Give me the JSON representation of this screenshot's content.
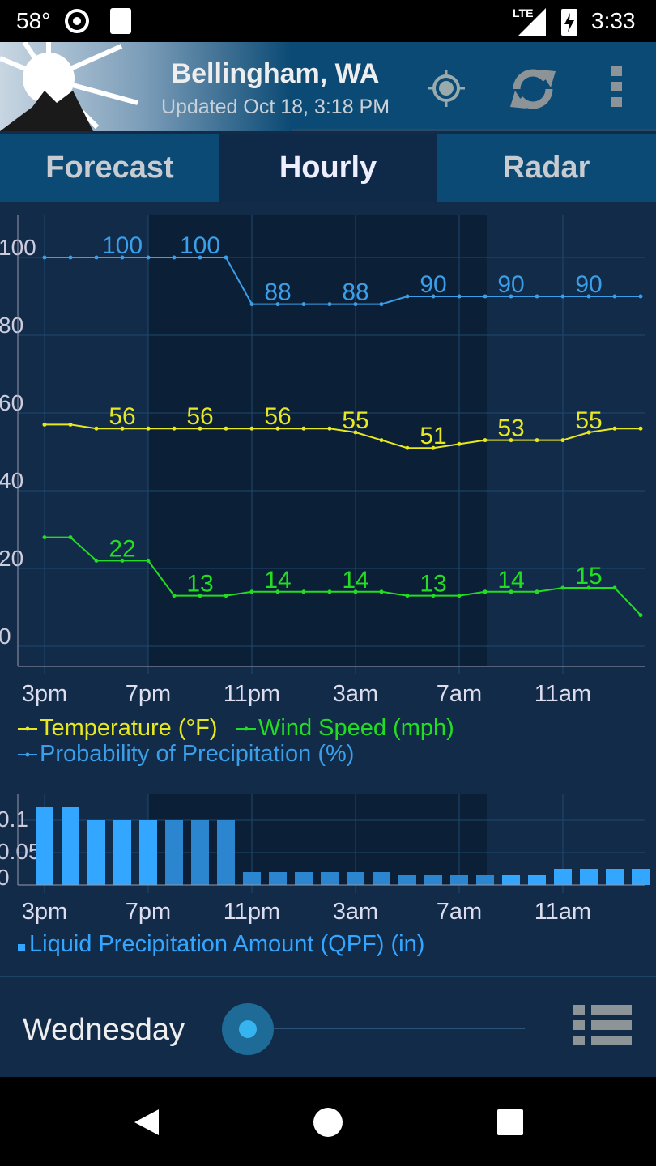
{
  "status_bar": {
    "temperature": "58°",
    "network": "LTE",
    "time": "3:33"
  },
  "header": {
    "location": "Bellingham, WA",
    "updated": "Updated Oct 18, 3:18 PM"
  },
  "tabs": [
    {
      "label": "Forecast",
      "active": false
    },
    {
      "label": "Hourly",
      "active": true
    },
    {
      "label": "Radar",
      "active": false
    }
  ],
  "colors": {
    "temperature": "#e8e820",
    "wind": "#22dd22",
    "precip": "#3a9ee8",
    "bar": "#33a6ff",
    "night": "#0b1f36"
  },
  "chart_data": [
    {
      "type": "line",
      "ylim": [
        0,
        100
      ],
      "y_ticks": [
        "0",
        "20",
        "40",
        "60",
        "80",
        "100"
      ],
      "x_ticks": [
        "3pm",
        "7pm",
        "11pm",
        "3am",
        "7am",
        "11am"
      ],
      "x": [
        "3pm",
        "4pm",
        "5pm",
        "6pm",
        "7pm",
        "8pm",
        "9pm",
        "10pm",
        "11pm",
        "12am",
        "1am",
        "2am",
        "3am",
        "4am",
        "5am",
        "6am",
        "7am",
        "8am",
        "9am",
        "10am",
        "11am",
        "12pm",
        "1pm",
        "2pm"
      ],
      "series": [
        {
          "name": "Probability of Precipitation (%)",
          "color": "#3a9ee8",
          "values": [
            100,
            100,
            100,
            100,
            100,
            100,
            100,
            100,
            88,
            88,
            88,
            88,
            88,
            88,
            90,
            90,
            90,
            90,
            90,
            90,
            90,
            90,
            90,
            90
          ]
        },
        {
          "name": "Temperature (°F)",
          "color": "#e8e820",
          "values": [
            57,
            57,
            56,
            56,
            56,
            56,
            56,
            56,
            56,
            56,
            56,
            56,
            55,
            53,
            51,
            51,
            52,
            53,
            53,
            53,
            53,
            55,
            56,
            56
          ]
        },
        {
          "name": "Wind Speed (mph)",
          "color": "#22dd22",
          "values": [
            28,
            28,
            22,
            22,
            22,
            13,
            13,
            13,
            14,
            14,
            14,
            14,
            14,
            14,
            13,
            13,
            13,
            14,
            14,
            14,
            15,
            15,
            15,
            8
          ]
        }
      ],
      "data_labels_every": 3,
      "legend": "bottom",
      "grid": true
    },
    {
      "type": "bar",
      "ylim": [
        0,
        0.12
      ],
      "y_ticks": [
        "0",
        "0.05",
        "0.1"
      ],
      "x_ticks": [
        "3pm",
        "7pm",
        "11pm",
        "3am",
        "7am",
        "11am"
      ],
      "series": [
        {
          "name": "Liquid Precipitation Amount (QPF) (in)",
          "color": "#33a6ff",
          "values": [
            0.12,
            0.12,
            0.1,
            0.1,
            0.1,
            0.1,
            0.1,
            0.1,
            0.02,
            0.02,
            0.02,
            0.02,
            0.02,
            0.02,
            0.015,
            0.015,
            0.015,
            0.015,
            0.015,
            0.015,
            0.025,
            0.025,
            0.025,
            0.025
          ]
        }
      ],
      "legend": "bottom",
      "grid": true
    }
  ],
  "footer": {
    "day": "Wednesday",
    "slider_value": 0
  }
}
